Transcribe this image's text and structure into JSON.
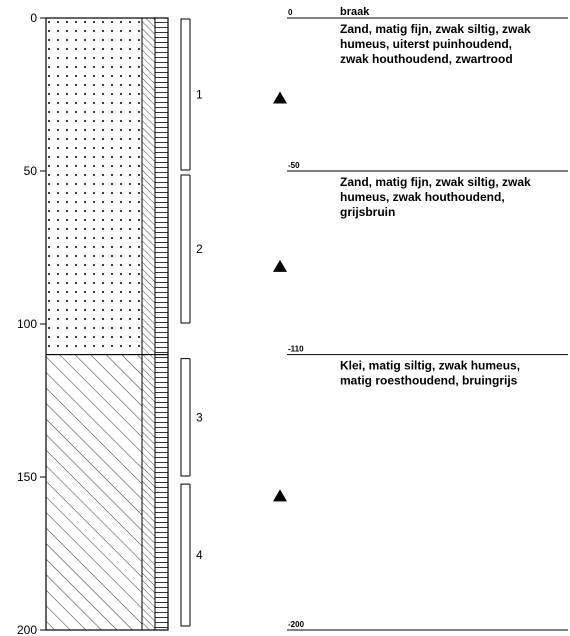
{
  "depth_axis": {
    "min": 0,
    "max": 200,
    "ticks": [
      0,
      50,
      100,
      150,
      200
    ]
  },
  "lithology": [
    {
      "top": 0,
      "bottom": 110,
      "pattern": "sand-dots"
    },
    {
      "top": 110,
      "bottom": 200,
      "pattern": "clay-hatch"
    }
  ],
  "samples": [
    {
      "label": "1",
      "top": 0,
      "bottom": 50
    },
    {
      "label": "2",
      "top": 51,
      "bottom": 100
    },
    {
      "label": "3",
      "top": 111,
      "bottom": 150
    },
    {
      "label": "4",
      "top": 152,
      "bottom": 199
    }
  ],
  "triangles": [
    26,
    81,
    156
  ],
  "layers": [
    {
      "depth_label": "0",
      "depth": 0,
      "header": "braak",
      "description": [
        "Zand, matig fijn, zwak siltig, zwak",
        "humeus, uiterst puinhoudend,",
        "zwak houthoudend, zwartrood"
      ]
    },
    {
      "depth_label": "-50",
      "depth": 50,
      "header": "",
      "description": [
        "Zand, matig fijn, zwak siltig, zwak",
        "humeus, zwak houthoudend,",
        "grijsbruin"
      ]
    },
    {
      "depth_label": "-110",
      "depth": 110,
      "header": "",
      "description": [
        "Klei, matig siltig, zwak humeus,",
        "matig roesthoudend, bruingrijs"
      ]
    },
    {
      "depth_label": "-200",
      "depth": 200,
      "header": "",
      "description": []
    }
  ],
  "symbols": {
    "triangle": "triangle-icon"
  }
}
